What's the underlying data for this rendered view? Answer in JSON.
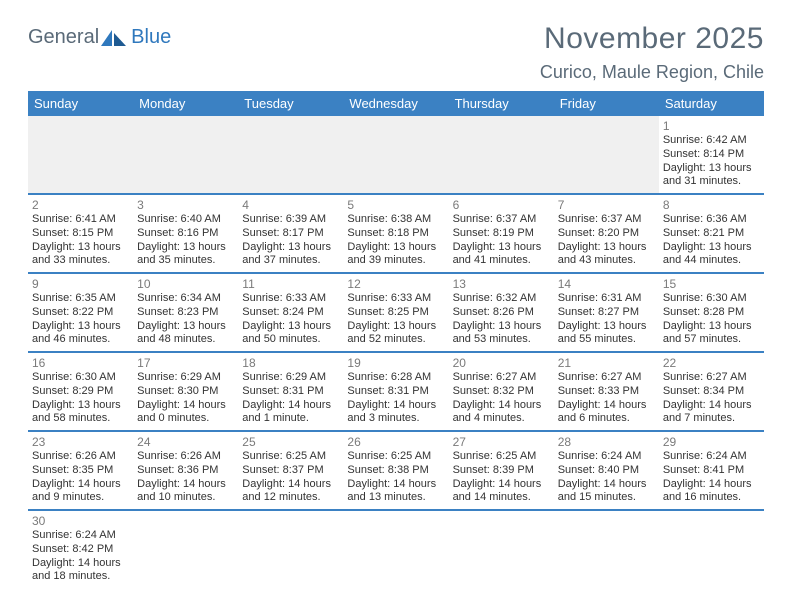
{
  "logo": {
    "text1": "General",
    "text2": "Blue"
  },
  "title": "November 2025",
  "location": "Curico, Maule Region, Chile",
  "colors": {
    "header_bg": "#3b81c3",
    "header_text": "#ffffff",
    "logo_gray": "#5a6a78",
    "logo_blue": "#2f78bd",
    "text": "#333333",
    "daynum": "#7a7a7a",
    "row_divider": "#3b81c3",
    "light_border": "#d8d8d8",
    "empty_bg": "#f0f0f0"
  },
  "day_headers": [
    "Sunday",
    "Monday",
    "Tuesday",
    "Wednesday",
    "Thursday",
    "Friday",
    "Saturday"
  ],
  "weeks": [
    [
      null,
      null,
      null,
      null,
      null,
      null,
      {
        "n": "1",
        "sunrise": "Sunrise: 6:42 AM",
        "sunset": "Sunset: 8:14 PM",
        "d1": "Daylight: 13 hours",
        "d2": "and 31 minutes."
      }
    ],
    [
      {
        "n": "2",
        "sunrise": "Sunrise: 6:41 AM",
        "sunset": "Sunset: 8:15 PM",
        "d1": "Daylight: 13 hours",
        "d2": "and 33 minutes."
      },
      {
        "n": "3",
        "sunrise": "Sunrise: 6:40 AM",
        "sunset": "Sunset: 8:16 PM",
        "d1": "Daylight: 13 hours",
        "d2": "and 35 minutes."
      },
      {
        "n": "4",
        "sunrise": "Sunrise: 6:39 AM",
        "sunset": "Sunset: 8:17 PM",
        "d1": "Daylight: 13 hours",
        "d2": "and 37 minutes."
      },
      {
        "n": "5",
        "sunrise": "Sunrise: 6:38 AM",
        "sunset": "Sunset: 8:18 PM",
        "d1": "Daylight: 13 hours",
        "d2": "and 39 minutes."
      },
      {
        "n": "6",
        "sunrise": "Sunrise: 6:37 AM",
        "sunset": "Sunset: 8:19 PM",
        "d1": "Daylight: 13 hours",
        "d2": "and 41 minutes."
      },
      {
        "n": "7",
        "sunrise": "Sunrise: 6:37 AM",
        "sunset": "Sunset: 8:20 PM",
        "d1": "Daylight: 13 hours",
        "d2": "and 43 minutes."
      },
      {
        "n": "8",
        "sunrise": "Sunrise: 6:36 AM",
        "sunset": "Sunset: 8:21 PM",
        "d1": "Daylight: 13 hours",
        "d2": "and 44 minutes."
      }
    ],
    [
      {
        "n": "9",
        "sunrise": "Sunrise: 6:35 AM",
        "sunset": "Sunset: 8:22 PM",
        "d1": "Daylight: 13 hours",
        "d2": "and 46 minutes."
      },
      {
        "n": "10",
        "sunrise": "Sunrise: 6:34 AM",
        "sunset": "Sunset: 8:23 PM",
        "d1": "Daylight: 13 hours",
        "d2": "and 48 minutes."
      },
      {
        "n": "11",
        "sunrise": "Sunrise: 6:33 AM",
        "sunset": "Sunset: 8:24 PM",
        "d1": "Daylight: 13 hours",
        "d2": "and 50 minutes."
      },
      {
        "n": "12",
        "sunrise": "Sunrise: 6:33 AM",
        "sunset": "Sunset: 8:25 PM",
        "d1": "Daylight: 13 hours",
        "d2": "and 52 minutes."
      },
      {
        "n": "13",
        "sunrise": "Sunrise: 6:32 AM",
        "sunset": "Sunset: 8:26 PM",
        "d1": "Daylight: 13 hours",
        "d2": "and 53 minutes."
      },
      {
        "n": "14",
        "sunrise": "Sunrise: 6:31 AM",
        "sunset": "Sunset: 8:27 PM",
        "d1": "Daylight: 13 hours",
        "d2": "and 55 minutes."
      },
      {
        "n": "15",
        "sunrise": "Sunrise: 6:30 AM",
        "sunset": "Sunset: 8:28 PM",
        "d1": "Daylight: 13 hours",
        "d2": "and 57 minutes."
      }
    ],
    [
      {
        "n": "16",
        "sunrise": "Sunrise: 6:30 AM",
        "sunset": "Sunset: 8:29 PM",
        "d1": "Daylight: 13 hours",
        "d2": "and 58 minutes."
      },
      {
        "n": "17",
        "sunrise": "Sunrise: 6:29 AM",
        "sunset": "Sunset: 8:30 PM",
        "d1": "Daylight: 14 hours",
        "d2": "and 0 minutes."
      },
      {
        "n": "18",
        "sunrise": "Sunrise: 6:29 AM",
        "sunset": "Sunset: 8:31 PM",
        "d1": "Daylight: 14 hours",
        "d2": "and 1 minute."
      },
      {
        "n": "19",
        "sunrise": "Sunrise: 6:28 AM",
        "sunset": "Sunset: 8:31 PM",
        "d1": "Daylight: 14 hours",
        "d2": "and 3 minutes."
      },
      {
        "n": "20",
        "sunrise": "Sunrise: 6:27 AM",
        "sunset": "Sunset: 8:32 PM",
        "d1": "Daylight: 14 hours",
        "d2": "and 4 minutes."
      },
      {
        "n": "21",
        "sunrise": "Sunrise: 6:27 AM",
        "sunset": "Sunset: 8:33 PM",
        "d1": "Daylight: 14 hours",
        "d2": "and 6 minutes."
      },
      {
        "n": "22",
        "sunrise": "Sunrise: 6:27 AM",
        "sunset": "Sunset: 8:34 PM",
        "d1": "Daylight: 14 hours",
        "d2": "and 7 minutes."
      }
    ],
    [
      {
        "n": "23",
        "sunrise": "Sunrise: 6:26 AM",
        "sunset": "Sunset: 8:35 PM",
        "d1": "Daylight: 14 hours",
        "d2": "and 9 minutes."
      },
      {
        "n": "24",
        "sunrise": "Sunrise: 6:26 AM",
        "sunset": "Sunset: 8:36 PM",
        "d1": "Daylight: 14 hours",
        "d2": "and 10 minutes."
      },
      {
        "n": "25",
        "sunrise": "Sunrise: 6:25 AM",
        "sunset": "Sunset: 8:37 PM",
        "d1": "Daylight: 14 hours",
        "d2": "and 12 minutes."
      },
      {
        "n": "26",
        "sunrise": "Sunrise: 6:25 AM",
        "sunset": "Sunset: 8:38 PM",
        "d1": "Daylight: 14 hours",
        "d2": "and 13 minutes."
      },
      {
        "n": "27",
        "sunrise": "Sunrise: 6:25 AM",
        "sunset": "Sunset: 8:39 PM",
        "d1": "Daylight: 14 hours",
        "d2": "and 14 minutes."
      },
      {
        "n": "28",
        "sunrise": "Sunrise: 6:24 AM",
        "sunset": "Sunset: 8:40 PM",
        "d1": "Daylight: 14 hours",
        "d2": "and 15 minutes."
      },
      {
        "n": "29",
        "sunrise": "Sunrise: 6:24 AM",
        "sunset": "Sunset: 8:41 PM",
        "d1": "Daylight: 14 hours",
        "d2": "and 16 minutes."
      }
    ],
    [
      {
        "n": "30",
        "sunrise": "Sunrise: 6:24 AM",
        "sunset": "Sunset: 8:42 PM",
        "d1": "Daylight: 14 hours",
        "d2": "and 18 minutes."
      },
      null,
      null,
      null,
      null,
      null,
      null
    ]
  ]
}
